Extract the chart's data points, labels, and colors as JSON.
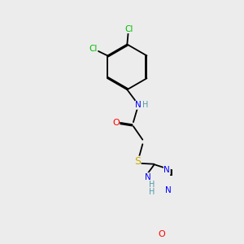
{
  "background_color": "#ececec",
  "bond_color": "#000000",
  "atom_colors": {
    "N": "#0000ff",
    "O": "#ff0000",
    "S": "#ccaa00",
    "Cl": "#00bb00",
    "H": "#5599aa",
    "C": "#000000"
  },
  "figsize": [
    3.0,
    3.0
  ],
  "dpi": 100
}
